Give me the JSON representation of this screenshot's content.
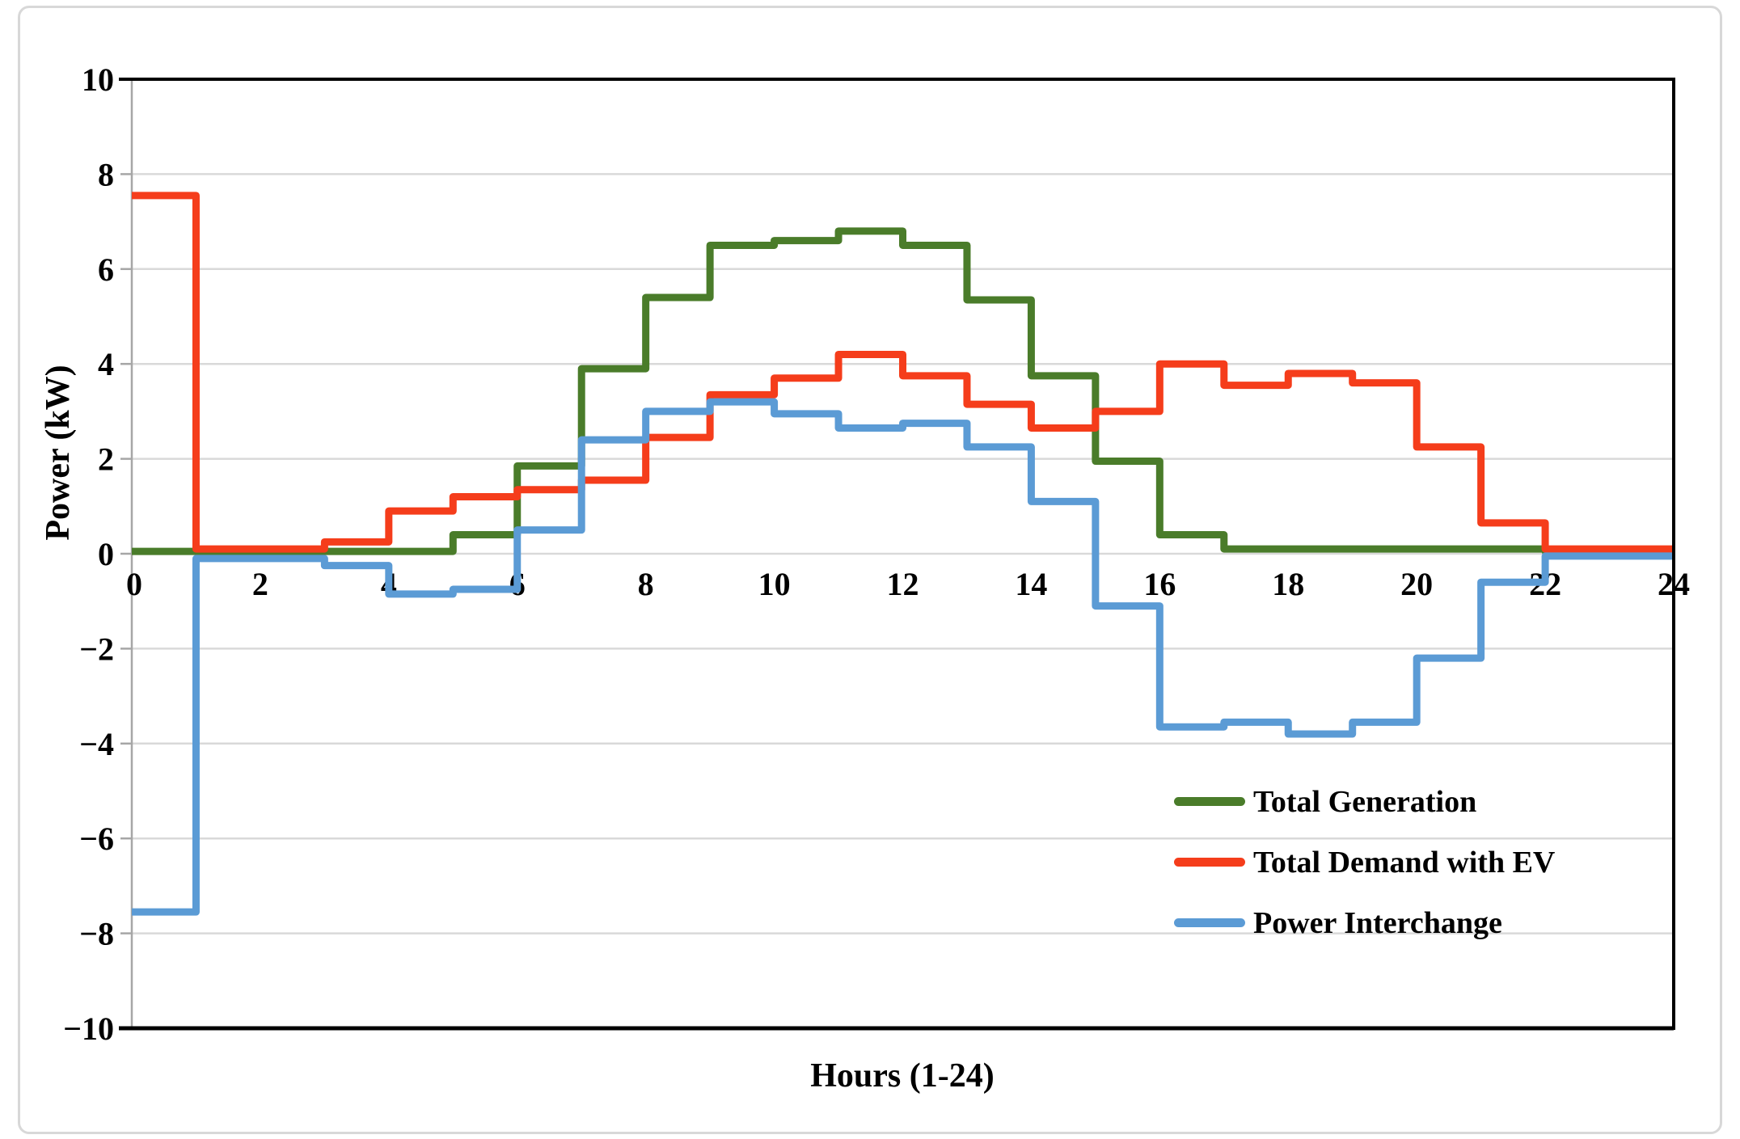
{
  "chart_data": {
    "type": "line",
    "subtype": "step",
    "title": "",
    "xlabel": "Hours (1-24)",
    "ylabel": "Power (kW)",
    "xlim": [
      0,
      24
    ],
    "ylim": [
      -10,
      10
    ],
    "x_ticks": [
      0,
      2,
      4,
      6,
      8,
      10,
      12,
      14,
      16,
      18,
      20,
      22,
      24
    ],
    "y_ticks": [
      10,
      8,
      6,
      4,
      2,
      0,
      -2,
      -4,
      -6,
      -8,
      -10
    ],
    "grid": "horizontal-only",
    "legend_position": "inside-lower-right",
    "step_hours": [
      0,
      1,
      2,
      3,
      4,
      5,
      6,
      7,
      8,
      9,
      10,
      11,
      12,
      13,
      14,
      15,
      16,
      17,
      18,
      19,
      20,
      21,
      22,
      23
    ],
    "series": [
      {
        "name": "Total Generation",
        "color": "#4a7c2a",
        "values": [
          0.05,
          0.05,
          0.05,
          0.05,
          0.05,
          0.4,
          1.85,
          3.9,
          5.4,
          6.5,
          6.6,
          6.8,
          6.5,
          5.35,
          3.75,
          1.95,
          0.4,
          0.1,
          0.1,
          0.1,
          0.1,
          0.1,
          0.05,
          0.05
        ]
      },
      {
        "name": "Total Demand with EV",
        "color": "#f53d1b",
        "values": [
          7.55,
          0.1,
          0.1,
          0.25,
          0.9,
          1.2,
          1.35,
          1.55,
          2.45,
          3.35,
          3.7,
          4.2,
          3.75,
          3.15,
          2.65,
          3.0,
          4.0,
          3.55,
          3.8,
          3.6,
          2.25,
          0.65,
          0.1,
          0.1
        ]
      },
      {
        "name": "Power Interchange",
        "color": "#5b9bd5",
        "values": [
          -7.55,
          -0.1,
          -0.1,
          -0.25,
          -0.85,
          -0.75,
          0.5,
          2.4,
          3.0,
          3.2,
          2.95,
          2.65,
          2.75,
          2.25,
          1.1,
          -1.1,
          -3.65,
          -3.55,
          -3.8,
          -3.55,
          -2.2,
          -0.6,
          -0.05,
          -0.05
        ]
      }
    ],
    "colors": {
      "gridline": "#d9d9d9",
      "axis_line": "#a6a6a6",
      "plot_border": "#000000",
      "frame_border": "#d8d8d8",
      "text": "#000000"
    }
  }
}
